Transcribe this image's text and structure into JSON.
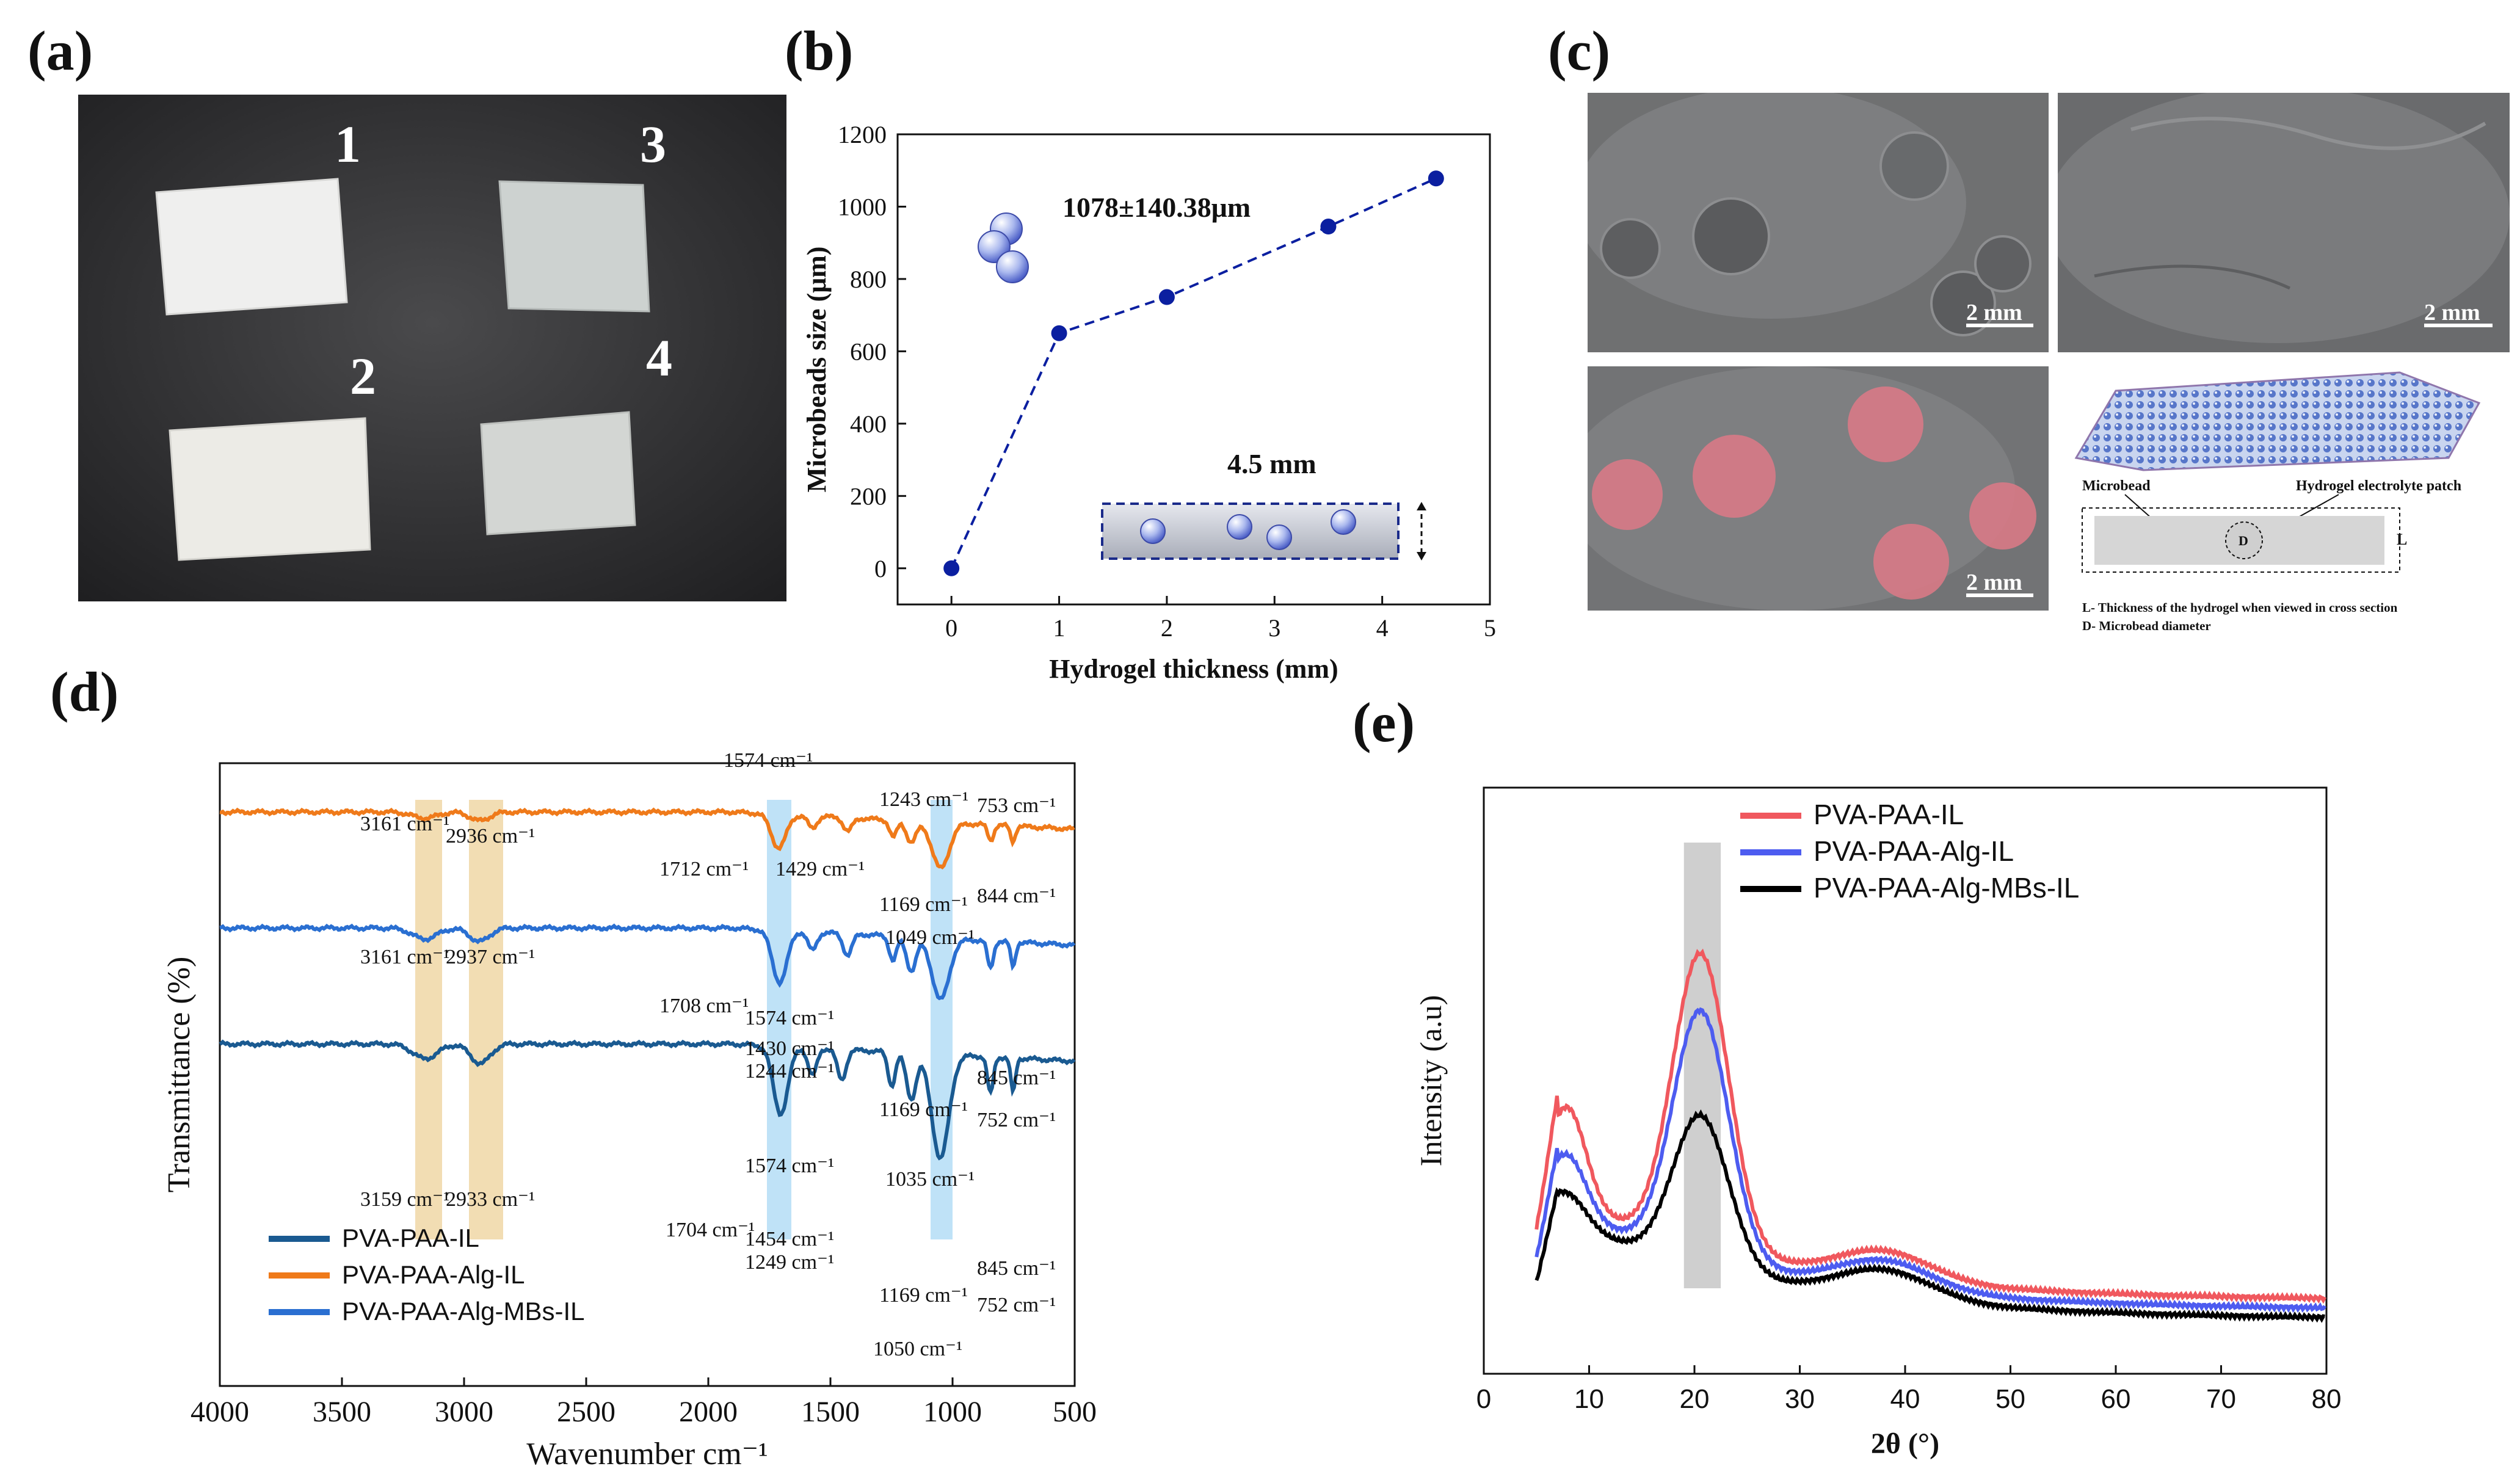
{
  "panels": {
    "a": {
      "label": "(a)",
      "sample_numbers": [
        "1",
        "3",
        "2",
        "4"
      ]
    },
    "b": {
      "label": "(b)",
      "annotation_size": "1078±140.38μm",
      "annotation_thickness": "4.5 mm"
    },
    "c": {
      "label": "(c)",
      "scale_bars": [
        "2 mm",
        "2 mm",
        "2 mm"
      ],
      "schematic": {
        "microbead_label": "Microbead",
        "patch_label": "Hydrogel electrolyte patch",
        "d_symbol": "D",
        "l_symbol": "L",
        "legend_l": "L- Thickness of the hydrogel when viewed in cross section",
        "legend_d": "D- Microbead diameter"
      }
    },
    "d": {
      "label": "(d)"
    },
    "e": {
      "label": "(e)"
    }
  },
  "chart_data": [
    {
      "id": "b",
      "type": "line",
      "title": "",
      "xlabel": "Hydrogel thickness (mm)",
      "ylabel": "Microbeads size (μm)",
      "xlim": [
        -0.5,
        5
      ],
      "ylim": [
        -100,
        1200
      ],
      "xticks": [
        0,
        1,
        2,
        3,
        4,
        5
      ],
      "yticks": [
        0,
        200,
        400,
        600,
        800,
        1000,
        1200
      ],
      "x": [
        0,
        1,
        2,
        3.5,
        4.5
      ],
      "y": [
        0,
        650,
        750,
        945,
        1078
      ],
      "color": "#0b1fa0",
      "line_style": "dashed"
    },
    {
      "id": "d",
      "type": "line",
      "title": "",
      "xlabel": "Wavenumber cm⁻¹",
      "ylabel": "Transmittance (%)",
      "xlim": [
        4000,
        500
      ],
      "xticks": [
        4000,
        3500,
        3000,
        2500,
        2000,
        1500,
        1000,
        500
      ],
      "legend": [
        "PVA-PAA-IL",
        "PVA-PAA-Alg-IL",
        "PVA-PAA-Alg-MBs-IL"
      ],
      "legend_colors": [
        "#1a5a91",
        "#ef7a1a",
        "#2a6fd1"
      ],
      "series": [
        {
          "name": "PVA-PAA-Alg-IL",
          "color": "#ef7a1a",
          "baseline": 0.0
        },
        {
          "name": "PVA-PAA-Alg-MBs-IL",
          "color": "#2a6fd1",
          "baseline": 1.0
        },
        {
          "name": "PVA-PAA-IL",
          "color": "#1a5a91",
          "baseline": 2.0
        }
      ],
      "highlight_bands": [
        {
          "from": 3200,
          "to": 3090,
          "color": "#f2ddb3"
        },
        {
          "from": 2980,
          "to": 2840,
          "color": "#f2ddb3"
        },
        {
          "from": 1760,
          "to": 1660,
          "color": "#bfe2f7"
        },
        {
          "from": 1090,
          "to": 1000,
          "color": "#bfe2f7"
        }
      ],
      "annotations": [
        "3161 cm⁻¹",
        "2936 cm⁻¹",
        "1574 cm⁻¹",
        "1712 cm⁻¹",
        "1429 cm⁻¹",
        "1243 cm⁻¹",
        "753 cm⁻¹",
        "1169 cm⁻¹",
        "844 cm⁻¹",
        "1049 cm⁻¹",
        "3161 cm⁻¹",
        "2937 cm⁻¹",
        "1708 cm⁻¹",
        "1574 cm⁻¹",
        "1430 cm⁻¹",
        "1244 cm⁻¹",
        "845 cm⁻¹",
        "1169 cm⁻¹",
        "752 cm⁻¹",
        "3159 cm⁻¹",
        "2933 cm⁻¹",
        "1574 cm⁻¹",
        "1035 cm⁻¹",
        "1704 cm⁻¹",
        "1454 cm⁻¹",
        "1249 cm⁻¹",
        "845 cm⁻¹",
        "1169 cm⁻¹",
        "752 cm⁻¹",
        "1050 cm⁻¹"
      ]
    },
    {
      "id": "e",
      "type": "line",
      "title": "",
      "xlabel": "2θ (°)",
      "ylabel": "Intensity (a.u)",
      "xlim": [
        0,
        80
      ],
      "xticks": [
        0,
        10,
        20,
        30,
        40,
        50,
        60,
        70,
        80
      ],
      "legend": [
        "PVA-PAA-IL",
        "PVA-PAA-Alg-IL",
        "PVA-PAA-Alg-MBs-IL"
      ],
      "series": [
        {
          "name": "PVA-PAA-IL",
          "color": "#f0585e",
          "start": 0.16,
          "shoulder": 0.38,
          "peak": 0.92,
          "tail": 0.04
        },
        {
          "name": "PVA-PAA-Alg-IL",
          "color": "#4d5cf0",
          "start": 0.08,
          "shoulder": 0.3,
          "peak": 0.82,
          "tail": 0.02
        },
        {
          "name": "PVA-PAA-Alg-MBs-IL",
          "color": "#000000",
          "start": 0.02,
          "shoulder": 0.24,
          "peak": 0.62,
          "tail": 0.0
        }
      ],
      "highlight_band": {
        "from": 19,
        "to": 22.5,
        "color": "#cfcfcf"
      }
    }
  ]
}
